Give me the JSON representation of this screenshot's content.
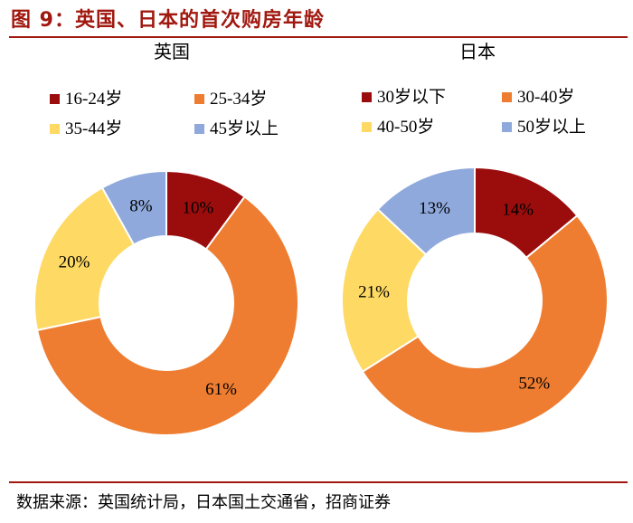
{
  "figure_title": "图 9：英国、日本的首次购房年龄",
  "source": "数据来源：英国统计局，日本国土交通省，招商证券",
  "chart_data": [
    {
      "type": "pie",
      "title": "英国",
      "categories": [
        "16-24岁",
        "25-34岁",
        "35-44岁",
        "45岁以上"
      ],
      "values": [
        10,
        61,
        20,
        8
      ],
      "labels": [
        "10%",
        "61%",
        "20%",
        "8%"
      ],
      "colors": [
        "#9b0d0d",
        "#ee7d31",
        "#fed964",
        "#8fa9dc"
      ],
      "legend": "top",
      "donut": true
    },
    {
      "type": "pie",
      "title": "日本",
      "categories": [
        "30岁以下",
        "30-40岁",
        "40-50岁",
        "50岁以上"
      ],
      "values": [
        14,
        52,
        21,
        13
      ],
      "labels": [
        "14%",
        "52%",
        "21%",
        "13%"
      ],
      "colors": [
        "#9b0d0d",
        "#ee7d31",
        "#fed964",
        "#8fa9dc"
      ],
      "legend": "top",
      "donut": true
    }
  ]
}
